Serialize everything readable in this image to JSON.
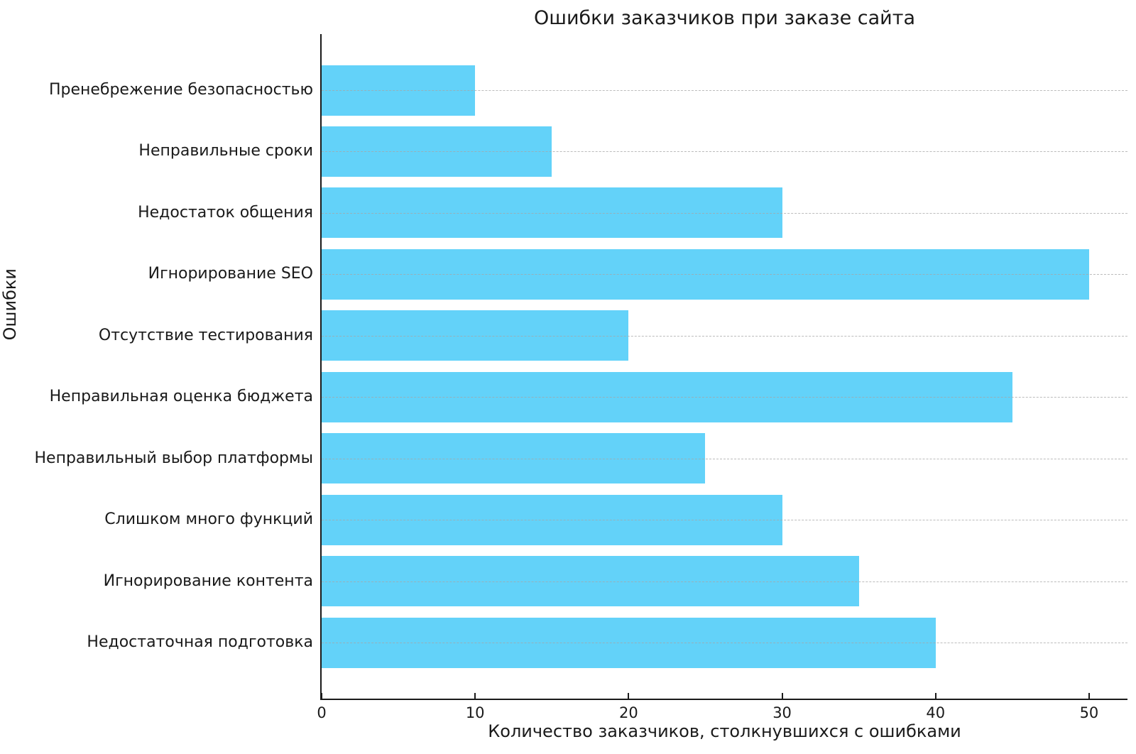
{
  "figure": {
    "background_color": "#ffffff",
    "text_color": "#1a1a1a"
  },
  "chart_data": {
    "type": "bar",
    "orientation": "horizontal",
    "title": "Ошибки заказчиков при заказе сайта",
    "xlabel": "Количество заказчиков, столкнувшихся с ошибками",
    "ylabel": "Ошибки",
    "categories": [
      "Пренебрежение безопасностью",
      "Неправильные сроки",
      "Недостаток общения",
      "Игнорирование SEO",
      "Отсутствие тестирования",
      "Неправильная оценка бюджета",
      "Неправильный выбор платформы",
      "Слишком много функций",
      "Игнорирование контента",
      "Недостаточная подготовка"
    ],
    "values": [
      10,
      15,
      30,
      50,
      20,
      45,
      25,
      30,
      35,
      40
    ],
    "categories_order_note": "listed top-to-bottom as displayed",
    "xticks": [
      0,
      10,
      20,
      30,
      40,
      50
    ],
    "xlim": [
      0,
      52.5
    ],
    "bar_color": "#63d2f9",
    "grid": "horizontal dashed, drawn over bars",
    "grid_color": "#a5a5a5",
    "axis_color": "#1a1a1a",
    "legend": "none"
  }
}
